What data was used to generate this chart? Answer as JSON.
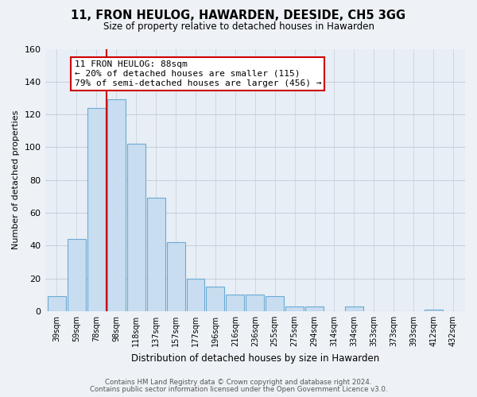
{
  "title": "11, FRON HEULOG, HAWARDEN, DEESIDE, CH5 3GG",
  "subtitle": "Size of property relative to detached houses in Hawarden",
  "xlabel": "Distribution of detached houses by size in Hawarden",
  "ylabel": "Number of detached properties",
  "categories": [
    "39sqm",
    "59sqm",
    "78sqm",
    "98sqm",
    "118sqm",
    "137sqm",
    "157sqm",
    "177sqm",
    "196sqm",
    "216sqm",
    "236sqm",
    "255sqm",
    "275sqm",
    "294sqm",
    "314sqm",
    "334sqm",
    "353sqm",
    "373sqm",
    "393sqm",
    "412sqm",
    "432sqm"
  ],
  "values": [
    9,
    44,
    124,
    129,
    102,
    69,
    42,
    20,
    15,
    10,
    10,
    9,
    3,
    3,
    0,
    3,
    0,
    0,
    0,
    1,
    0
  ],
  "bar_color": "#c8ddf0",
  "bar_edge_color": "#6aaad4",
  "marker_line_color": "#cc0000",
  "annotation_line1": "11 FRON HEULOG: 88sqm",
  "annotation_line2": "← 20% of detached houses are smaller (115)",
  "annotation_line3": "79% of semi-detached houses are larger (456) →",
  "annotation_box_color": "#ffffff",
  "annotation_box_edge": "#cc0000",
  "ylim": [
    0,
    160
  ],
  "yticks": [
    0,
    20,
    40,
    60,
    80,
    100,
    120,
    140,
    160
  ],
  "footer_line1": "Contains HM Land Registry data © Crown copyright and database right 2024.",
  "footer_line2": "Contains public sector information licensed under the Open Government Licence v3.0.",
  "bg_color": "#eef2f7",
  "plot_bg_color": "#e8eef5",
  "grid_color": "#c5ced8"
}
